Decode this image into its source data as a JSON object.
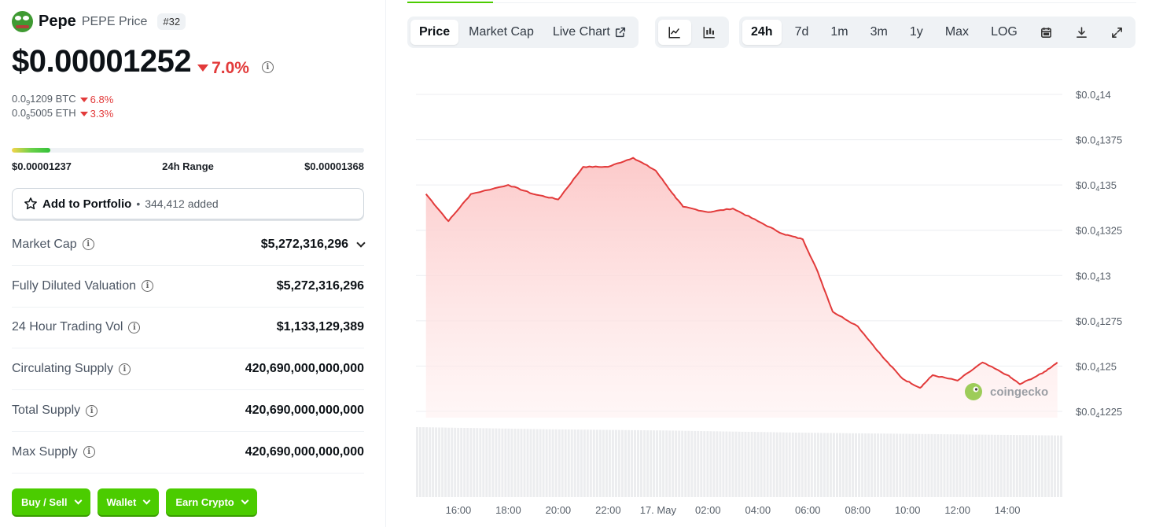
{
  "coin": {
    "name": "Pepe",
    "symbol_label": "PEPE Price",
    "rank": "#32",
    "price": "$0.00001252",
    "change_24h": "7.0%",
    "btc": {
      "prefix": "0.0",
      "sub": "9",
      "rest": "1209 BTC",
      "change": "6.8%"
    },
    "eth": {
      "prefix": "0.0",
      "sub": "8",
      "rest": "5005 ETH",
      "change": "3.3%"
    },
    "range": {
      "low": "$0.00001237",
      "label": "24h Range",
      "high": "$0.00001368",
      "position": 0.11
    }
  },
  "portfolio": {
    "label": "Add to Portfolio",
    "separator": "•",
    "count": "344,412 added"
  },
  "stats": [
    {
      "label": "Market Cap",
      "value": "$5,272,316,296",
      "expand": true
    },
    {
      "label": "Fully Diluted Valuation",
      "value": "$5,272,316,296"
    },
    {
      "label": "24 Hour Trading Vol",
      "value": "$1,133,129,389"
    },
    {
      "label": "Circulating Supply",
      "value": "420,690,000,000,000"
    },
    {
      "label": "Total Supply",
      "value": "420,690,000,000,000"
    },
    {
      "label": "Max Supply",
      "value": "420,690,000,000,000"
    }
  ],
  "actions": {
    "buy_sell": "Buy / Sell",
    "wallet": "Wallet",
    "earn": "Earn Crypto"
  },
  "toolbar": {
    "price": "Price",
    "market_cap": "Market Cap",
    "live_chart": "Live Chart",
    "ranges": [
      "24h",
      "7d",
      "1m",
      "3m",
      "1y",
      "Max",
      "LOG"
    ],
    "active_range": "24h",
    "active_type": "Price",
    "icons": [
      "line-chart-icon",
      "candlestick-icon",
      "calendar-icon",
      "download-icon",
      "fullscreen-icon"
    ]
  },
  "chart_data": {
    "type": "area",
    "y_ticks": [
      {
        "prefix": "$0.0",
        "sub": "4",
        "rest": "14",
        "value": 1.4e-05
      },
      {
        "prefix": "$0.0",
        "sub": "4",
        "rest": "1375",
        "value": 1.375e-05
      },
      {
        "prefix": "$0.0",
        "sub": "4",
        "rest": "135",
        "value": 1.35e-05
      },
      {
        "prefix": "$0.0",
        "sub": "4",
        "rest": "1325",
        "value": 1.325e-05
      },
      {
        "prefix": "$0.0",
        "sub": "4",
        "rest": "13",
        "value": 1.3e-05
      },
      {
        "prefix": "$0.0",
        "sub": "4",
        "rest": "1275",
        "value": 1.275e-05
      },
      {
        "prefix": "$0.0",
        "sub": "4",
        "rest": "125",
        "value": 1.25e-05
      },
      {
        "prefix": "$0.0",
        "sub": "4",
        "rest": "1225",
        "value": 1.225e-05
      }
    ],
    "ylim": [
      1.225e-05,
      1.4e-05
    ],
    "x_ticks": [
      "16:00",
      "18:00",
      "20:00",
      "22:00",
      "17. May",
      "02:00",
      "04:00",
      "06:00",
      "08:00",
      "10:00",
      "12:00",
      "14:00"
    ],
    "hours": [
      14.7,
      15.6,
      16.5,
      18.0,
      19.0,
      20.0,
      21.0,
      22.0,
      23.0,
      23.9,
      24.6,
      25.0,
      26.0,
      27.0,
      28.0,
      29.0,
      29.8,
      30.4,
      31.0,
      32.0,
      33.0,
      33.8,
      34.5,
      35.0,
      36.0,
      37.0,
      38.0,
      38.5,
      39.4,
      40.0
    ],
    "price": [
      1.345e-05,
      1.33e-05,
      1.345e-05,
      1.35e-05,
      1.345e-05,
      1.342e-05,
      1.36e-05,
      1.36e-05,
      1.365e-05,
      1.358e-05,
      1.345e-05,
      1.338e-05,
      1.335e-05,
      1.337e-05,
      1.33e-05,
      1.323e-05,
      1.32e-05,
      1.302e-05,
      1.28e-05,
      1.272e-05,
      1.255e-05,
      1.243e-05,
      1.238e-05,
      1.245e-05,
      1.242e-05,
      1.252e-05,
      1.245e-05,
      1.24e-05,
      1.246e-05,
      1.252e-05
    ],
    "volume_relative": [
      1.0,
      0.97,
      0.95,
      0.92,
      0.9,
      0.88
    ],
    "watermark": "coingecko",
    "line_color": "#e23a3a",
    "fill_color": "#fdd6d6"
  }
}
